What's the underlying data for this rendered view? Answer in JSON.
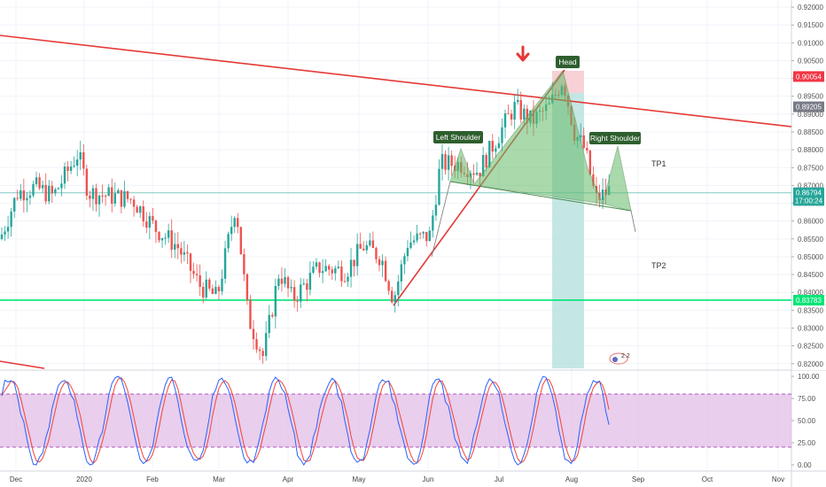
{
  "chart_data": {
    "type": "candlestick",
    "price_axis": {
      "ticks": [
        "0.92000",
        "0.91500",
        "0.91000",
        "0.90500",
        "0.90000",
        "0.89500",
        "0.89000",
        "0.88500",
        "0.88000",
        "0.87500",
        "0.87000",
        "0.86500",
        "0.86000",
        "0.85500",
        "0.85000",
        "0.84500",
        "0.84000",
        "0.83500",
        "0.83000",
        "0.82500",
        "0.82000"
      ],
      "range": [
        0.8187,
        0.922
      ]
    },
    "time_axis": {
      "labels": [
        "Dec",
        "2020",
        "Feb",
        "Mar",
        "Apr",
        "May",
        "Jun",
        "Jul",
        "Aug",
        "Sep",
        "Oct",
        "Nov"
      ]
    },
    "badges": [
      {
        "text": "0.90054",
        "value": 0.90054,
        "color": "#f23645"
      },
      {
        "text": "0.89205",
        "value": 0.89205,
        "color": "#787b86"
      },
      {
        "text": "0.86794",
        "value": 0.86794,
        "color": "#26a69a"
      },
      {
        "text": "17:00:24",
        "value": 0.8658,
        "color": "#26a69a"
      },
      {
        "text": "0.83783",
        "value": 0.83783,
        "color": "#00e676"
      }
    ],
    "annotations": {
      "head": "Head",
      "left_shoulder": "Left Shoulder",
      "right_shoulder": "Right Shoulder",
      "tp1": "TP1",
      "tp2": "TP2"
    },
    "horizontal_lines": [
      {
        "value": 0.86794,
        "color": "#80cbc4"
      },
      {
        "value": 0.83783,
        "color": "#00e676"
      }
    ],
    "stochastic": {
      "ticks": [
        "100.00",
        "75.00",
        "50.00",
        "25.00",
        "0.00"
      ],
      "range": [
        -5,
        105
      ],
      "upper_band": 80,
      "lower_band": 20
    },
    "colors": {
      "up": "#26a69a",
      "down": "#ef5350",
      "trendline": "#e53935",
      "pattern_fill": "#66bb6a",
      "k_line": "#2962ff",
      "d_line": "#f44336",
      "band_fill": "#e1bee7"
    }
  }
}
